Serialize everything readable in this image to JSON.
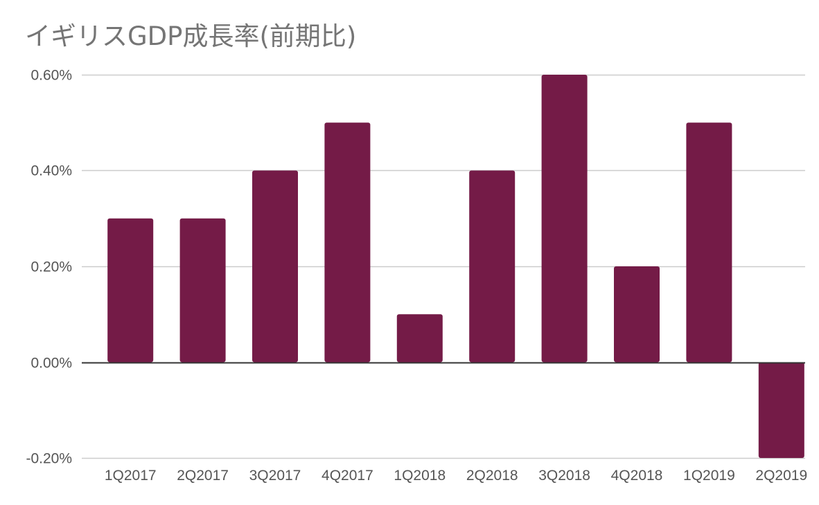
{
  "chart_data": {
    "type": "bar",
    "title": "イギリスGDP成長率(前期比)",
    "xlabel": "",
    "ylabel": "",
    "categories": [
      "1Q2017",
      "2Q2017",
      "3Q2017",
      "4Q2017",
      "1Q2018",
      "2Q2018",
      "3Q2018",
      "4Q2018",
      "1Q2019",
      "2Q2019"
    ],
    "series": [
      {
        "values": [
          0.3,
          0.3,
          0.4,
          0.5,
          0.1,
          0.4,
          0.6,
          0.2,
          0.5,
          -0.2
        ]
      }
    ],
    "ylim": [
      -0.2,
      0.6
    ],
    "yticks": [
      -0.2,
      0.0,
      0.2,
      0.4,
      0.6
    ],
    "ytick_labels": [
      "-0.20%",
      "0.00%",
      "0.20%",
      "0.40%",
      "0.60%"
    ],
    "grid": true,
    "legend": "none",
    "colors": {
      "bar": "#741b47",
      "grid": "#cccccc",
      "zero_line": "#333333",
      "title": "#757575",
      "tick_text": "#555555"
    }
  }
}
